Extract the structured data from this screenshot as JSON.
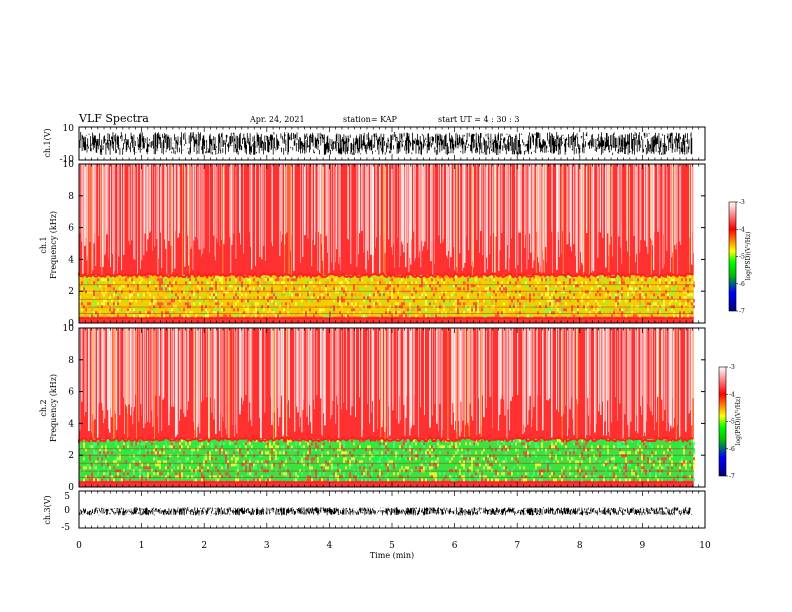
{
  "header": {
    "title": "VLF Spectra",
    "date": "Apr. 24, 2021",
    "station": "station= KAP",
    "start": "start  UT =   4 : 30 : 3"
  },
  "colorbar": {
    "label": "log(PSD)(V²/Hz)",
    "ticks": [
      "-3",
      "-4",
      "-5",
      "-6",
      "-7"
    ],
    "range": [
      -7,
      -3
    ],
    "colors": [
      "#000080",
      "#0000ff",
      "#00c000",
      "#00ff00",
      "#ffff00",
      "#ff0000",
      "#ffffff"
    ]
  },
  "chart_data": [
    {
      "type": "line",
      "panel": "ch1-waveform",
      "ylabel": "ch.1(V)",
      "ylim": [
        -10,
        10
      ],
      "yticks": [
        "10",
        "-10"
      ],
      "xlim": [
        0,
        10
      ],
      "amplitude_range": [
        -7,
        7
      ],
      "duration_min": 9.8,
      "color": "#000000"
    },
    {
      "type": "heatmap",
      "panel": "ch1-spectrogram",
      "ylabel_line1": "ch.1",
      "ylabel_line2": "Frequency  (kHz)",
      "ylim": [
        0,
        10
      ],
      "yticks": [
        "0",
        "2",
        "4",
        "6",
        "8",
        "10"
      ],
      "xlim": [
        0,
        10
      ],
      "bands": [
        {
          "from_khz": 3.0,
          "to_khz": 10.0,
          "level": "high",
          "dominant": "#ff0000"
        },
        {
          "from_khz": 0.4,
          "to_khz": 3.0,
          "level": "medium",
          "dominant": "#ffff00"
        },
        {
          "from_khz": 0.0,
          "to_khz": 0.4,
          "level": "high",
          "dominant": "#ff0000"
        }
      ]
    },
    {
      "type": "heatmap",
      "panel": "ch2-spectrogram",
      "ylabel_line1": "ch.2",
      "ylabel_line2": "Frequency  (kHz)",
      "ylim": [
        0,
        10
      ],
      "yticks": [
        "0",
        "2",
        "4",
        "6",
        "8",
        "10"
      ],
      "xlim": [
        0,
        10
      ],
      "bands": [
        {
          "from_khz": 3.0,
          "to_khz": 10.0,
          "level": "high",
          "dominant": "#ff0000"
        },
        {
          "from_khz": 0.4,
          "to_khz": 3.0,
          "level": "low",
          "dominant": "#00ff00"
        },
        {
          "from_khz": 0.0,
          "to_khz": 0.4,
          "level": "high",
          "dominant": "#ff0000"
        }
      ]
    },
    {
      "type": "line",
      "panel": "ch3-waveform",
      "ylabel": "ch.3(V)",
      "ylim": [
        -5,
        5
      ],
      "yticks": [
        "5",
        "0",
        "-5"
      ],
      "xlim": [
        0,
        10
      ],
      "amplitude_range": [
        -1.6,
        0.6
      ],
      "duration_min": 9.8,
      "color": "#000000"
    }
  ],
  "xaxis": {
    "label": "Time  (min)",
    "ticks": [
      "0",
      "1",
      "2",
      "3",
      "4",
      "5",
      "6",
      "7",
      "8",
      "9",
      "10"
    ],
    "range": [
      0,
      10
    ]
  }
}
